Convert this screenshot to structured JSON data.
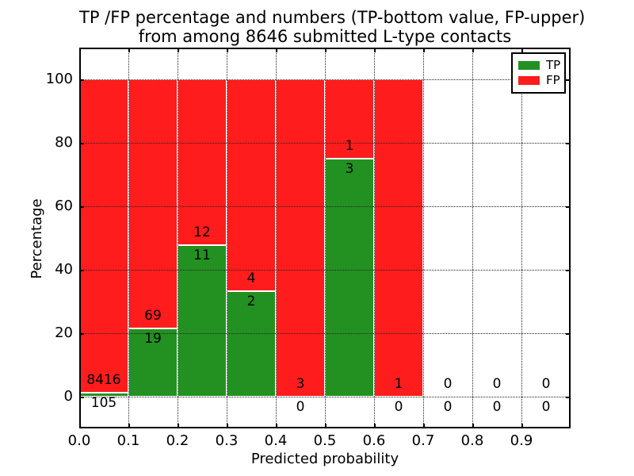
{
  "figure": {
    "title_line1": "TP /FP percentage and numbers (TP-bottom value, FP-upper)",
    "title_line2": "from among 8646 submitted L-type contacts",
    "background": "#ffffff"
  },
  "axes": {
    "xlabel": "Predicted probability",
    "ylabel": "Percentage",
    "xtick_labels": [
      "0.0",
      "0.1",
      "0.2",
      "0.3",
      "0.4",
      "0.5",
      "0.6",
      "0.7",
      "0.8",
      "0.9"
    ],
    "ytick_labels": [
      "0",
      "20",
      "40",
      "60",
      "80",
      "100"
    ],
    "xlim": [
      0.0,
      1.0
    ],
    "ylim": [
      -10,
      110
    ],
    "grid_style": "dotted"
  },
  "legend": {
    "position": "upper right",
    "items": [
      {
        "label": "TP",
        "color": "#239122"
      },
      {
        "label": "FP",
        "color": "#ff1c1c"
      }
    ]
  },
  "chart_data": {
    "type": "bar",
    "stacked": true,
    "title": "TP /FP percentage and numbers (TP-bottom value, FP-upper) from among 8646 submitted L-type contacts",
    "xlabel": "Predicted probability",
    "ylabel": "Percentage",
    "xlim": [
      0.0,
      1.0
    ],
    "ylim": [
      -10,
      110
    ],
    "grid": true,
    "legend_position": "upper right",
    "total_submitted": 8646,
    "bin_edges": [
      0.0,
      0.1,
      0.2,
      0.3,
      0.4,
      0.5,
      0.6,
      0.7,
      0.8,
      0.9,
      1.0
    ],
    "categories": [
      "0.0-0.1",
      "0.1-0.2",
      "0.2-0.3",
      "0.3-0.4",
      "0.4-0.5",
      "0.5-0.6",
      "0.6-0.7",
      "0.7-0.8",
      "0.8-0.9",
      "0.9-1.0"
    ],
    "series": [
      {
        "name": "TP",
        "color": "#239122",
        "counts": [
          105,
          19,
          11,
          2,
          0,
          3,
          0,
          0,
          0,
          0
        ]
      },
      {
        "name": "FP",
        "color": "#ff1c1c",
        "counts": [
          8416,
          69,
          12,
          4,
          3,
          1,
          1,
          0,
          0,
          0
        ]
      }
    ],
    "tp_percent_by_bin": [
      1.23,
      21.59,
      47.83,
      33.33,
      0.0,
      75.0,
      0.0,
      null,
      null,
      null
    ],
    "bar_top_percent": [
      100,
      100,
      100,
      100,
      100,
      100,
      100,
      null,
      null,
      null
    ]
  }
}
